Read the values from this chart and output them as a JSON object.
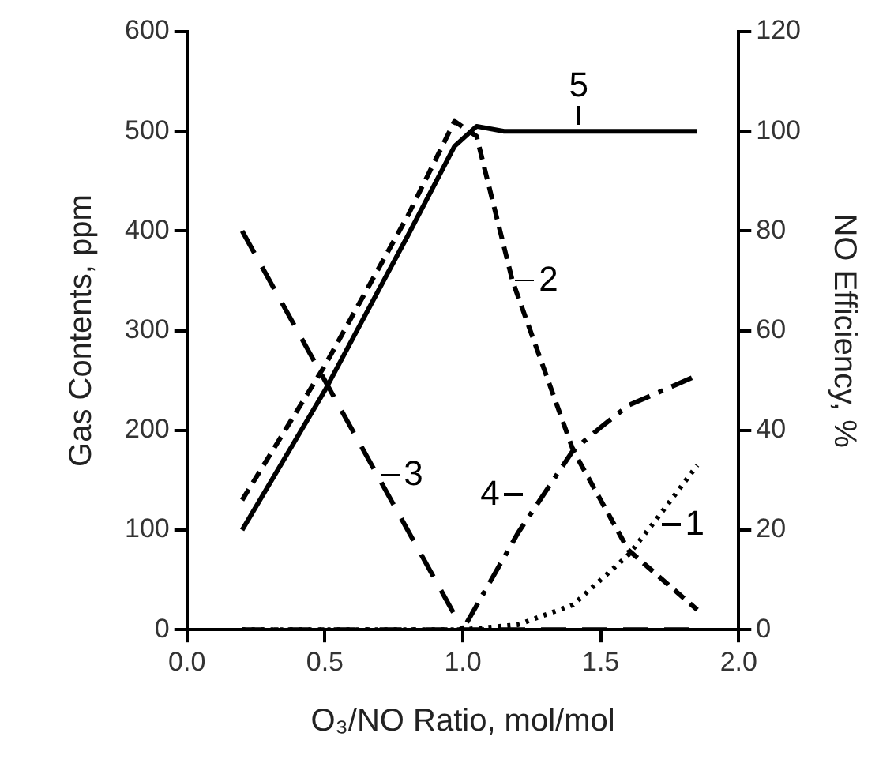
{
  "chart_data": {
    "type": "line",
    "xlabel": "O₃/NO Ratio, mol/mol",
    "ylabel": "Gas Contents, ppm",
    "y2label": "NO Efficiency, %",
    "xlim": [
      0,
      2
    ],
    "xticks": [
      {
        "value": 0,
        "label": "0.0"
      },
      {
        "value": 0.5,
        "label": "0.5"
      },
      {
        "value": 1,
        "label": "1.0"
      },
      {
        "value": 1.5,
        "label": "1.5"
      },
      {
        "value": 2,
        "label": "2.0"
      }
    ],
    "ylim": [
      0,
      600
    ],
    "yticks": [
      0,
      100,
      200,
      300,
      400,
      500,
      600
    ],
    "y2lim": [
      0,
      120
    ],
    "y2ticks": [
      0,
      20,
      40,
      60,
      80,
      100,
      120
    ],
    "grid": false,
    "marker": "none",
    "series": [
      {
        "color": "#000000",
        "line_style": "dotted",
        "x": [
          0.2,
          0.6,
          1.0,
          1.2,
          1.4,
          1.6,
          1.7,
          1.85
        ],
        "values": [
          0,
          0,
          0,
          5,
          25,
          75,
          110,
          165
        ]
      },
      {
        "color": "#000000",
        "line_style": "dashed",
        "x": [
          0.2,
          0.5,
          0.8,
          0.97,
          1.05,
          1.18,
          1.4,
          1.6,
          1.85
        ],
        "values": [
          130,
          265,
          415,
          510,
          495,
          350,
          180,
          80,
          20
        ]
      },
      {
        "color": "#000000",
        "line_style": "longdash",
        "x": [
          0.2,
          0.5,
          1.0,
          1.5,
          1.85
        ],
        "values": [
          400,
          250,
          0,
          0,
          0
        ]
      },
      {
        "color": "#000000",
        "line_style": "dashdot",
        "x": [
          0.2,
          0.6,
          1.0,
          1.2,
          1.4,
          1.5,
          1.6,
          1.85
        ],
        "values": [
          0,
          0,
          0,
          97,
          180,
          203,
          225,
          255
        ]
      },
      {
        "color": "#000000",
        "line_style": "solid",
        "axis": "y2",
        "x": [
          0.2,
          0.5,
          0.8,
          0.97,
          1.05,
          1.15,
          1.2,
          1.85
        ],
        "values": [
          20,
          48,
          79,
          97,
          101,
          100,
          100,
          100
        ]
      }
    ],
    "annotations": [
      "1",
      "2",
      "3",
      "4",
      "5"
    ]
  }
}
